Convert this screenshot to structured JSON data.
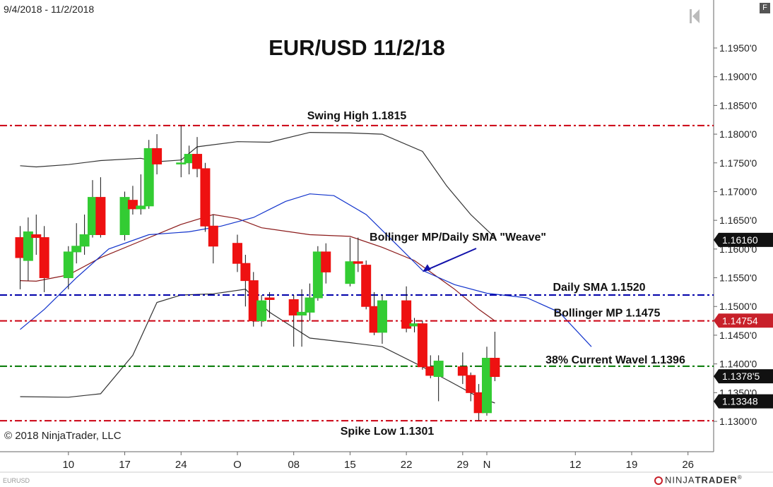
{
  "header": {
    "date_range": "9/4/2018 - 11/2/2018",
    "f_button": "F",
    "symbol": "EURUSD"
  },
  "footer": {
    "copyright": "© 2018 NinjaTrader, LLC",
    "brand_prefix": "NINJA",
    "brand_suffix": "TRADER",
    "brand_mark": "®"
  },
  "colors": {
    "bull": "#33cc33",
    "bear": "#ee1111",
    "sma": "#1133cc",
    "bollinger_mid": "#8b1a1a",
    "bollinger_band": "#333333",
    "level_red": "#cc0011",
    "level_blue": "#0000aa",
    "level_green": "#007700"
  },
  "chart_data": {
    "type": "candlestick",
    "title": "EUR/USD 11/2/18",
    "ylim": [
      1.1278,
      1.2005
    ],
    "y_ticks": [
      1.13,
      1.135,
      1.14,
      1.145,
      1.15,
      1.155,
      1.16,
      1.165,
      1.17,
      1.175,
      1.18,
      1.185,
      1.19,
      1.195
    ],
    "y_tick_labels": [
      "1.1300'0",
      "1.1350'0",
      "1.1400'0",
      "1.1450'0",
      "1.1500'0",
      "1.1550'0",
      "1.1600'0",
      "1.1650'0",
      "1.1700'0",
      "1.1750'0",
      "1.1800'0",
      "1.1850'0",
      "1.1900'0",
      "1.1950'0"
    ],
    "x_labels": [
      {
        "label": "10",
        "date": "2018-09-10"
      },
      {
        "label": "17",
        "date": "2018-09-17"
      },
      {
        "label": "24",
        "date": "2018-09-24"
      },
      {
        "label": "O",
        "date": "2018-10-01"
      },
      {
        "label": "08",
        "date": "2018-10-08"
      },
      {
        "label": "15",
        "date": "2018-10-15"
      },
      {
        "label": "22",
        "date": "2018-10-22"
      },
      {
        "label": "29",
        "date": "2018-10-29"
      },
      {
        "label": "N",
        "date": "2018-11-01"
      },
      {
        "label": "12",
        "date": "2018-11-12"
      },
      {
        "label": "19",
        "date": "2018-11-19"
      },
      {
        "label": "26",
        "date": "2018-11-26"
      }
    ],
    "candles": [
      {
        "date": "2018-09-04",
        "o": 1.162,
        "h": 1.164,
        "l": 1.153,
        "c": 1.1585
      },
      {
        "date": "2018-09-05",
        "o": 1.158,
        "h": 1.1655,
        "l": 1.1545,
        "c": 1.163
      },
      {
        "date": "2018-09-06",
        "o": 1.1625,
        "h": 1.166,
        "l": 1.159,
        "c": 1.162
      },
      {
        "date": "2018-09-07",
        "o": 1.162,
        "h": 1.164,
        "l": 1.1525,
        "c": 1.155
      },
      {
        "date": "2018-09-10",
        "o": 1.155,
        "h": 1.1605,
        "l": 1.153,
        "c": 1.1595
      },
      {
        "date": "2018-09-11",
        "o": 1.1595,
        "h": 1.1645,
        "l": 1.1575,
        "c": 1.1605
      },
      {
        "date": "2018-09-12",
        "o": 1.1605,
        "h": 1.166,
        "l": 1.159,
        "c": 1.1625
      },
      {
        "date": "2018-09-13",
        "o": 1.1625,
        "h": 1.172,
        "l": 1.162,
        "c": 1.169
      },
      {
        "date": "2018-09-14",
        "o": 1.169,
        "h": 1.1725,
        "l": 1.162,
        "c": 1.1625
      },
      {
        "date": "2018-09-17",
        "o": 1.1625,
        "h": 1.17,
        "l": 1.1615,
        "c": 1.169
      },
      {
        "date": "2018-09-18",
        "o": 1.1685,
        "h": 1.171,
        "l": 1.166,
        "c": 1.167
      },
      {
        "date": "2018-09-19",
        "o": 1.167,
        "h": 1.173,
        "l": 1.166,
        "c": 1.1675
      },
      {
        "date": "2018-09-20",
        "o": 1.1675,
        "h": 1.179,
        "l": 1.167,
        "c": 1.1775
      },
      {
        "date": "2018-09-21",
        "o": 1.1775,
        "h": 1.18,
        "l": 1.173,
        "c": 1.1748
      },
      {
        "date": "2018-09-24",
        "o": 1.1748,
        "h": 1.1815,
        "l": 1.1725,
        "c": 1.175
      },
      {
        "date": "2018-09-25",
        "o": 1.175,
        "h": 1.178,
        "l": 1.173,
        "c": 1.1765
      },
      {
        "date": "2018-09-26",
        "o": 1.1765,
        "h": 1.1795,
        "l": 1.1725,
        "c": 1.174
      },
      {
        "date": "2018-09-27",
        "o": 1.174,
        "h": 1.175,
        "l": 1.163,
        "c": 1.164
      },
      {
        "date": "2018-09-28",
        "o": 1.164,
        "h": 1.166,
        "l": 1.1575,
        "c": 1.1605
      },
      {
        "date": "2018-10-01",
        "o": 1.161,
        "h": 1.1625,
        "l": 1.156,
        "c": 1.1575
      },
      {
        "date": "2018-10-02",
        "o": 1.1575,
        "h": 1.159,
        "l": 1.15,
        "c": 1.1545
      },
      {
        "date": "2018-10-03",
        "o": 1.1545,
        "h": 1.156,
        "l": 1.1465,
        "c": 1.1475
      },
      {
        "date": "2018-10-04",
        "o": 1.1475,
        "h": 1.152,
        "l": 1.1465,
        "c": 1.151
      },
      {
        "date": "2018-10-05",
        "o": 1.1515,
        "h": 1.1525,
        "l": 1.148,
        "c": 1.1512
      },
      {
        "date": "2018-10-08",
        "o": 1.1512,
        "h": 1.152,
        "l": 1.143,
        "c": 1.1485
      },
      {
        "date": "2018-10-09",
        "o": 1.1485,
        "h": 1.153,
        "l": 1.143,
        "c": 1.149
      },
      {
        "date": "2018-10-10",
        "o": 1.149,
        "h": 1.154,
        "l": 1.1475,
        "c": 1.1515
      },
      {
        "date": "2018-10-11",
        "o": 1.1515,
        "h": 1.1605,
        "l": 1.151,
        "c": 1.1595
      },
      {
        "date": "2018-10-12",
        "o": 1.1595,
        "h": 1.161,
        "l": 1.154,
        "c": 1.156
      },
      {
        "date": "2018-10-15",
        "o": 1.154,
        "h": 1.162,
        "l": 1.1535,
        "c": 1.1578
      },
      {
        "date": "2018-10-16",
        "o": 1.1578,
        "h": 1.162,
        "l": 1.156,
        "c": 1.1575
      },
      {
        "date": "2018-10-17",
        "o": 1.1572,
        "h": 1.158,
        "l": 1.1495,
        "c": 1.15
      },
      {
        "date": "2018-10-18",
        "o": 1.15,
        "h": 1.1525,
        "l": 1.145,
        "c": 1.1455
      },
      {
        "date": "2018-10-19",
        "o": 1.1455,
        "h": 1.152,
        "l": 1.1435,
        "c": 1.151
      },
      {
        "date": "2018-10-22",
        "o": 1.151,
        "h": 1.1535,
        "l": 1.1455,
        "c": 1.1462
      },
      {
        "date": "2018-10-23",
        "o": 1.1466,
        "h": 1.148,
        "l": 1.1455,
        "c": 1.147
      },
      {
        "date": "2018-10-24",
        "o": 1.147,
        "h": 1.1475,
        "l": 1.139,
        "c": 1.1395
      },
      {
        "date": "2018-10-25",
        "o": 1.1395,
        "h": 1.1415,
        "l": 1.1375,
        "c": 1.138
      },
      {
        "date": "2018-10-26",
        "o": 1.1378,
        "h": 1.1415,
        "l": 1.1335,
        "c": 1.1405
      },
      {
        "date": "2018-10-29",
        "o": 1.1395,
        "h": 1.142,
        "l": 1.1365,
        "c": 1.138
      },
      {
        "date": "2018-10-30",
        "o": 1.138,
        "h": 1.1385,
        "l": 1.1335,
        "c": 1.135
      },
      {
        "date": "2018-10-31",
        "o": 1.135,
        "h": 1.1365,
        "l": 1.1302,
        "c": 1.1315
      },
      {
        "date": "2018-11-01",
        "o": 1.1315,
        "h": 1.143,
        "l": 1.131,
        "c": 1.141
      },
      {
        "date": "2018-11-02",
        "o": 1.141,
        "h": 1.1456,
        "l": 1.137,
        "c": 1.1378
      }
    ],
    "lines": [
      {
        "name": "Bollinger upper",
        "color": "#333333",
        "points": [
          [
            "2018-09-04",
            1.1745
          ],
          [
            "2018-09-06",
            1.1743
          ],
          [
            "2018-09-10",
            1.1747
          ],
          [
            "2018-09-14",
            1.1754
          ],
          [
            "2018-09-19",
            1.1758
          ],
          [
            "2018-09-21",
            1.1752
          ],
          [
            "2018-09-24",
            1.1755
          ],
          [
            "2018-09-26",
            1.1778
          ],
          [
            "2018-10-01",
            1.1787
          ],
          [
            "2018-10-05",
            1.1786
          ],
          [
            "2018-10-10",
            1.1803
          ],
          [
            "2018-10-15",
            1.1802
          ],
          [
            "2018-10-19",
            1.18
          ],
          [
            "2018-10-24",
            1.177
          ],
          [
            "2018-10-27",
            1.171
          ],
          [
            "2018-10-30",
            1.166
          ],
          [
            "2018-11-02",
            1.162
          ]
        ]
      },
      {
        "name": "Bollinger lower",
        "color": "#333333",
        "points": [
          [
            "2018-09-04",
            1.1343
          ],
          [
            "2018-09-10",
            1.1342
          ],
          [
            "2018-09-14",
            1.1348
          ],
          [
            "2018-09-18",
            1.1415
          ],
          [
            "2018-09-21",
            1.1507
          ],
          [
            "2018-09-24",
            1.152
          ],
          [
            "2018-09-28",
            1.1522
          ],
          [
            "2018-10-02",
            1.153
          ],
          [
            "2018-10-05",
            1.149
          ],
          [
            "2018-10-10",
            1.1445
          ],
          [
            "2018-10-15",
            1.1437
          ],
          [
            "2018-10-19",
            1.143
          ],
          [
            "2018-10-24",
            1.1395
          ],
          [
            "2018-10-28",
            1.1365
          ],
          [
            "2018-10-31",
            1.1342
          ],
          [
            "2018-11-02",
            1.1332
          ]
        ]
      },
      {
        "name": "Bollinger MP 1.1475",
        "color": "#8b1a1a",
        "points": [
          [
            "2018-09-04",
            1.1545
          ],
          [
            "2018-09-06",
            1.1544
          ],
          [
            "2018-09-10",
            1.1555
          ],
          [
            "2018-09-14",
            1.1585
          ],
          [
            "2018-09-19",
            1.1614
          ],
          [
            "2018-09-24",
            1.1643
          ],
          [
            "2018-09-28",
            1.166
          ],
          [
            "2018-10-01",
            1.1653
          ],
          [
            "2018-10-04",
            1.1637
          ],
          [
            "2018-10-10",
            1.1625
          ],
          [
            "2018-10-15",
            1.1622
          ],
          [
            "2018-10-19",
            1.1603
          ],
          [
            "2018-10-23",
            1.158
          ],
          [
            "2018-10-28",
            1.153
          ],
          [
            "2018-10-31",
            1.1495
          ],
          [
            "2018-11-02",
            1.1475
          ]
        ]
      },
      {
        "name": "Daily SMA 1.1520",
        "color": "#1133cc",
        "points": [
          [
            "2018-09-04",
            1.146
          ],
          [
            "2018-09-07",
            1.1495
          ],
          [
            "2018-09-11",
            1.155
          ],
          [
            "2018-09-15",
            1.16
          ],
          [
            "2018-09-20",
            1.1625
          ],
          [
            "2018-09-25",
            1.163
          ],
          [
            "2018-09-29",
            1.164
          ],
          [
            "2018-10-03",
            1.1655
          ],
          [
            "2018-10-07",
            1.1683
          ],
          [
            "2018-10-10",
            1.1696
          ],
          [
            "2018-10-13",
            1.1693
          ],
          [
            "2018-10-17",
            1.166
          ],
          [
            "2018-10-21",
            1.1605
          ],
          [
            "2018-10-24",
            1.1563
          ],
          [
            "2018-10-28",
            1.1538
          ],
          [
            "2018-11-01",
            1.1523
          ],
          [
            "2018-11-06",
            1.1515
          ],
          [
            "2018-11-10",
            1.149
          ],
          [
            "2018-11-14",
            1.143
          ]
        ]
      }
    ],
    "levels": [
      {
        "label": "Swing High 1.1815",
        "value": 1.1815,
        "color": "#cc0011",
        "style": "dashdot"
      },
      {
        "label": "Daily SMA 1.1520",
        "value": 1.152,
        "color": "#0000aa",
        "style": "dashdot"
      },
      {
        "label": "Bollinger MP 1.1475",
        "value": 1.1475,
        "color": "#cc0011",
        "style": "dashdot"
      },
      {
        "label": "38% Current Wavel 1.1396",
        "value": 1.1396,
        "color": "#007700",
        "style": "dashdot"
      },
      {
        "label": "Spike Low 1.1301",
        "value": 1.1301,
        "color": "#cc0011",
        "style": "dashdot"
      }
    ],
    "annotations": [
      {
        "text": "Bollinger MP/Daily SMA \"Weave\"",
        "arrow_to": [
          "2018-10-24",
          1.156
        ]
      }
    ],
    "price_markers": [
      {
        "label": "1.16160",
        "value": 1.1616,
        "color": "#111111"
      },
      {
        "label": "1.14754",
        "value": 1.14754,
        "color": "#c8202a"
      },
      {
        "label": "1.1378'5",
        "value": 1.13785,
        "color": "#111111"
      },
      {
        "label": "1.13348",
        "value": 1.13348,
        "color": "#111111"
      }
    ]
  }
}
